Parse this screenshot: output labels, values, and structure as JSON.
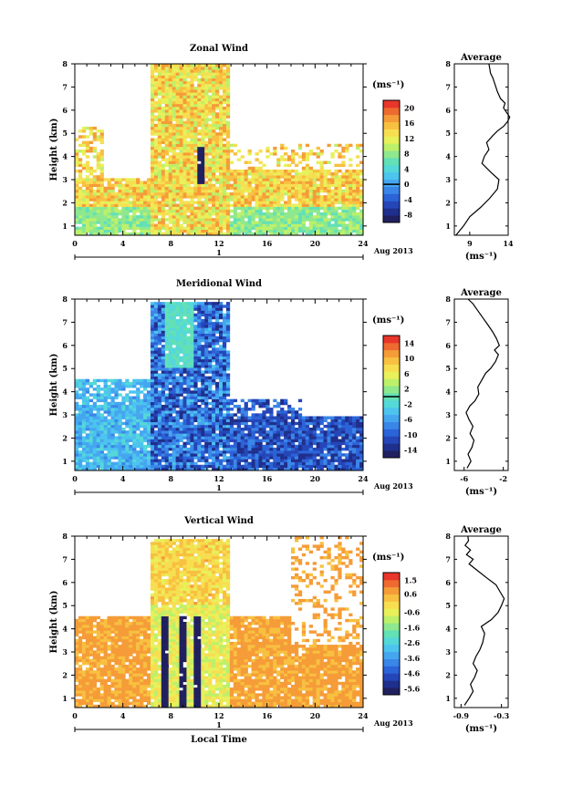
{
  "figure": {
    "date_label": "Aug 2013",
    "day_label": "1",
    "unit_label": "(ms⁻¹)",
    "avg_title": "Average",
    "avg_xlabel": "(ms⁻¹)",
    "ylabel": "Height (km)",
    "xlabel": "Local Time"
  },
  "chart_data": [
    {
      "type": "heatmap",
      "title": "Zonal Wind",
      "xlabel": "Local Time",
      "ylabel": "Height (km)",
      "xlim": [
        0,
        24
      ],
      "ylim": [
        0.6,
        8
      ],
      "xticks": [
        0,
        4,
        8,
        12,
        16,
        20,
        24
      ],
      "yticks": [
        1,
        2,
        3,
        4,
        5,
        6,
        7,
        8
      ],
      "colorbar": {
        "unit": "(ms⁻¹)",
        "range": [
          -10,
          22
        ],
        "ticks": [
          20,
          16,
          12,
          8,
          4,
          0,
          -4,
          -8
        ],
        "zero_line": 0
      }
    },
    {
      "type": "line",
      "title": "Average",
      "xlabel": "(ms⁻¹)",
      "xlim": [
        7,
        14
      ],
      "xticks": [
        9,
        14
      ],
      "ylim": [
        0.6,
        8
      ],
      "x": [
        7.2,
        8.2,
        9.0,
        10.4,
        11.6,
        12.6,
        12.8,
        11.8,
        10.6,
        10.9,
        11.5,
        11.2,
        12.0,
        12.6,
        13.4,
        13.9,
        14.2,
        13.8,
        13.4,
        13.6,
        13.0,
        12.6,
        12.3,
        12.0,
        11.7,
        11.6,
        11.5
      ],
      "y": [
        0.6,
        1.0,
        1.4,
        1.8,
        2.2,
        2.6,
        3.0,
        3.3,
        3.7,
        4.0,
        4.3,
        4.6,
        4.9,
        5.1,
        5.3,
        5.5,
        5.7,
        5.9,
        6.1,
        6.3,
        6.5,
        6.8,
        7.1,
        7.4,
        7.6,
        7.8,
        8.0
      ]
    },
    {
      "type": "heatmap",
      "title": "Meridional Wind",
      "xlabel": "Local Time",
      "ylabel": "Height (km)",
      "xlim": [
        0,
        24
      ],
      "ylim": [
        0.6,
        8
      ],
      "xticks": [
        0,
        4,
        8,
        12,
        16,
        20,
        24
      ],
      "yticks": [
        1,
        2,
        3,
        4,
        5,
        6,
        7,
        8
      ],
      "colorbar": {
        "unit": "(ms⁻¹)",
        "range": [
          -16,
          16
        ],
        "ticks": [
          14,
          10,
          6,
          2,
          -2,
          -6,
          -10,
          -14
        ],
        "zero_line": 0
      }
    },
    {
      "type": "line",
      "title": "Average",
      "xlabel": "(ms⁻¹)",
      "xlim": [
        -7,
        -1.5
      ],
      "xticks": [
        -6,
        -2
      ],
      "ylim": [
        0.6,
        8
      ],
      "x": [
        -5.7,
        -5.3,
        -5.6,
        -5.2,
        -5.0,
        -5.4,
        -5.1,
        -5.5,
        -5.8,
        -5.4,
        -4.9,
        -4.5,
        -4.6,
        -4.2,
        -3.8,
        -3.3,
        -2.8,
        -2.5,
        -2.9,
        -2.4,
        -2.7,
        -3.1,
        -3.6,
        -4.1,
        -4.6,
        -5.1,
        -5.6
      ],
      "y": [
        0.7,
        1.0,
        1.3,
        1.6,
        1.9,
        2.2,
        2.5,
        2.8,
        3.1,
        3.4,
        3.6,
        3.9,
        4.2,
        4.5,
        4.8,
        5.0,
        5.3,
        5.6,
        5.8,
        6.0,
        6.3,
        6.6,
        6.9,
        7.2,
        7.5,
        7.8,
        8.0
      ]
    },
    {
      "type": "heatmap",
      "title": "Vertical Wind",
      "xlabel": "Local Time",
      "ylabel": "Height (km)",
      "xlim": [
        0,
        24
      ],
      "ylim": [
        0.6,
        8
      ],
      "xticks": [
        0,
        4,
        8,
        12,
        16,
        20,
        24
      ],
      "yticks": [
        1,
        2,
        3,
        4,
        5,
        6,
        7,
        8
      ],
      "colorbar": {
        "unit": "(ms⁻¹)",
        "range": [
          -6,
          2
        ],
        "ticks": [
          1.5,
          0.6,
          -0.6,
          -1.6,
          -2.6,
          -3.6,
          -4.6,
          -5.6
        ],
        "zero_line": null
      }
    },
    {
      "type": "line",
      "title": "Average",
      "xlabel": "(ms⁻¹)",
      "xlim": [
        -1.0,
        -0.2
      ],
      "xticks": [
        -0.9,
        -0.3
      ],
      "ylim": [
        0.6,
        8
      ],
      "x": [
        -0.85,
        -0.78,
        -0.72,
        -0.76,
        -0.7,
        -0.66,
        -0.72,
        -0.68,
        -0.62,
        -0.58,
        -0.55,
        -0.6,
        -0.45,
        -0.35,
        -0.3,
        -0.26,
        -0.32,
        -0.38,
        -0.52,
        -0.65,
        -0.78,
        -0.72,
        -0.82,
        -0.76,
        -0.84,
        -0.79,
        -0.8
      ],
      "y": [
        0.7,
        1.0,
        1.3,
        1.6,
        1.9,
        2.2,
        2.5,
        2.8,
        3.1,
        3.4,
        3.8,
        4.1,
        4.4,
        4.7,
        5.0,
        5.3,
        5.6,
        5.9,
        6.2,
        6.5,
        6.8,
        7.0,
        7.2,
        7.4,
        7.6,
        7.8,
        8.0
      ]
    }
  ]
}
